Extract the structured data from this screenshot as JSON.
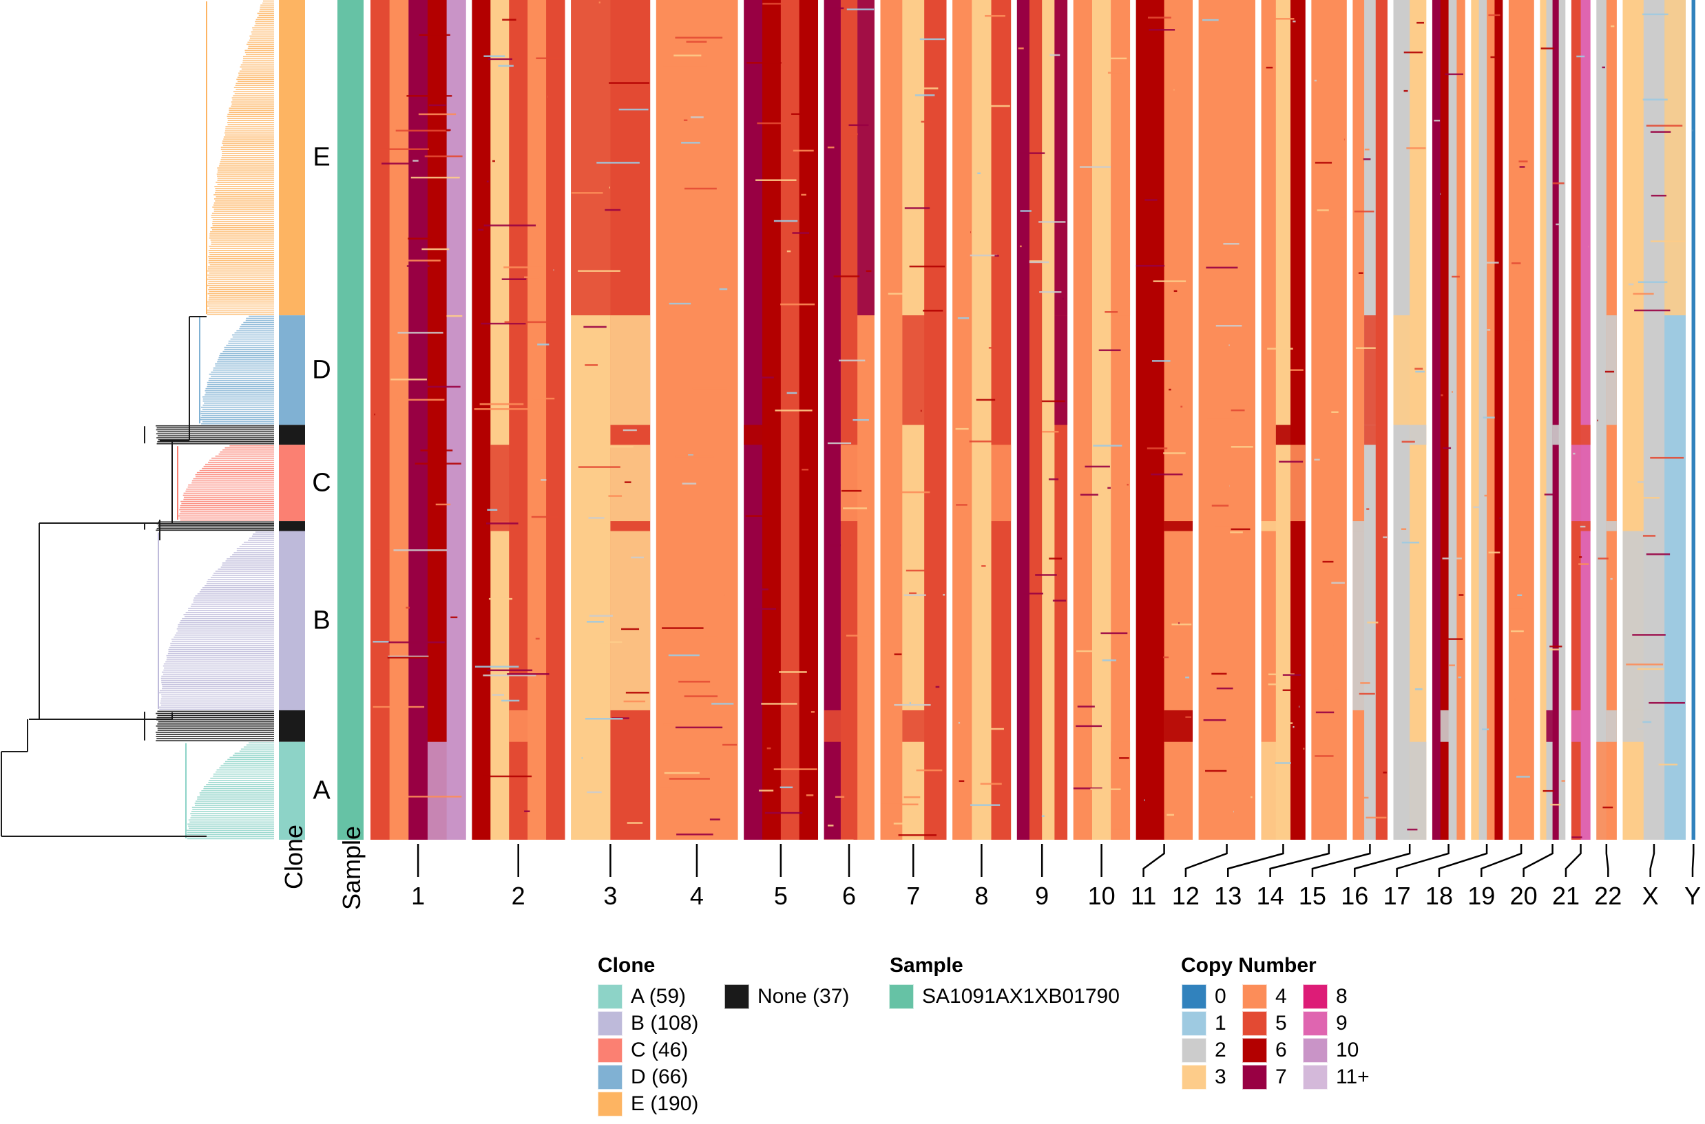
{
  "chart_data": {
    "type": "heatmap",
    "title": "",
    "description": "Single-cell copy number heatmap ordered by phylogenetic tree, with Clone and Sample annotation bars",
    "row_annotations": {
      "clone": {
        "label": "Clone",
        "order_top_to_bottom": [
          "E",
          "D",
          "None",
          "C",
          "None",
          "B",
          "None",
          "A"
        ],
        "groups": [
          {
            "name": "A",
            "count": 59,
            "color": "#8DD3C7"
          },
          {
            "name": "B",
            "count": 108,
            "color": "#BEBADA"
          },
          {
            "name": "C",
            "count": 46,
            "color": "#FB8072"
          },
          {
            "name": "D",
            "count": 66,
            "color": "#80B1D3"
          },
          {
            "name": "E",
            "count": 190,
            "color": "#FDB462"
          },
          {
            "name": "None",
            "count": 37,
            "color": "#1A1A1A"
          }
        ],
        "row_labels": [
          "E",
          "D",
          "C",
          "B",
          "A"
        ]
      },
      "sample": {
        "label": "Sample",
        "groups": [
          {
            "name": "SA1091AX1XB01790",
            "color": "#66C2A5"
          }
        ]
      }
    },
    "x_axis": {
      "label": "",
      "tick_labels": [
        "1",
        "2",
        "3",
        "4",
        "5",
        "6",
        "7",
        "8",
        "9",
        "10",
        "11",
        "12",
        "13",
        "14",
        "15",
        "16",
        "17",
        "18",
        "19",
        "20",
        "21",
        "22",
        "X",
        "Y"
      ]
    },
    "color_scale": {
      "title": "Copy Number",
      "levels": [
        {
          "label": "0",
          "color": "#3182BD"
        },
        {
          "label": "1",
          "color": "#9ECAE1"
        },
        {
          "label": "2",
          "color": "#CCCCCC"
        },
        {
          "label": "3",
          "color": "#FDCC8A"
        },
        {
          "label": "4",
          "color": "#FC8D59"
        },
        {
          "label": "5",
          "color": "#E34A33"
        },
        {
          "label": "6",
          "color": "#B30000"
        },
        {
          "label": "7",
          "color": "#980043"
        },
        {
          "label": "8",
          "color": "#DD1C77"
        },
        {
          "label": "9",
          "color": "#DF65B0"
        },
        {
          "label": "10",
          "color": "#C994C7"
        },
        {
          "label": "11+",
          "color": "#D4B9DA"
        }
      ]
    },
    "dominant_copy_number_by_chromosome": {
      "1": [
        5,
        4,
        7,
        6,
        10
      ],
      "2": [
        6,
        3,
        5,
        4,
        5
      ],
      "3": [
        3,
        5
      ],
      "4": [
        4
      ],
      "5": [
        7,
        6,
        5,
        6
      ],
      "6": [
        7,
        5,
        4
      ],
      "7": [
        4,
        3,
        5
      ],
      "8": [
        4,
        3,
        5
      ],
      "9": [
        7,
        5,
        3,
        5
      ],
      "10": [
        4,
        3,
        4
      ],
      "11": [
        6,
        4
      ],
      "12": [
        4
      ],
      "13": [
        4,
        3,
        6
      ],
      "14": [
        4
      ],
      "15": [
        4,
        2,
        5
      ],
      "16": [
        2,
        3
      ],
      "17": [
        7,
        6,
        2,
        4
      ],
      "18": [
        3,
        2,
        4,
        6
      ],
      "19": [
        4
      ],
      "20": [
        3,
        2,
        7,
        2
      ],
      "21": [
        5,
        9
      ],
      "22": [
        2,
        4
      ],
      "X": [
        3,
        2,
        1
      ],
      "Y": [
        0
      ]
    }
  },
  "labels": {
    "clone_axis": "Clone",
    "sample_axis": "Sample"
  },
  "legend": {
    "clone": {
      "title": "Clone",
      "items": [
        {
          "label": "A (59)",
          "color": "#8DD3C7"
        },
        {
          "label": "B (108)",
          "color": "#BEBADA"
        },
        {
          "label": "C (46)",
          "color": "#FB8072"
        },
        {
          "label": "D (66)",
          "color": "#80B1D3"
        },
        {
          "label": "E (190)",
          "color": "#FDB462"
        },
        {
          "label": "None (37)",
          "color": "#1A1A1A"
        }
      ]
    },
    "sample": {
      "title": "Sample",
      "items": [
        {
          "label": "SA1091AX1XB01790",
          "color": "#66C2A5"
        }
      ]
    },
    "copy_number": {
      "title": "Copy Number",
      "items": [
        {
          "label": "0",
          "color": "#3182BD"
        },
        {
          "label": "1",
          "color": "#9ECAE1"
        },
        {
          "label": "2",
          "color": "#CCCCCC"
        },
        {
          "label": "3",
          "color": "#FDCC8A"
        },
        {
          "label": "4",
          "color": "#FC8D59"
        },
        {
          "label": "5",
          "color": "#E34A33"
        },
        {
          "label": "6",
          "color": "#B30000"
        },
        {
          "label": "7",
          "color": "#980043"
        },
        {
          "label": "8",
          "color": "#DD1C77"
        },
        {
          "label": "9",
          "color": "#DF65B0"
        },
        {
          "label": "10",
          "color": "#C994C7"
        },
        {
          "label": "11+",
          "color": "#D4B9DA"
        }
      ]
    }
  }
}
